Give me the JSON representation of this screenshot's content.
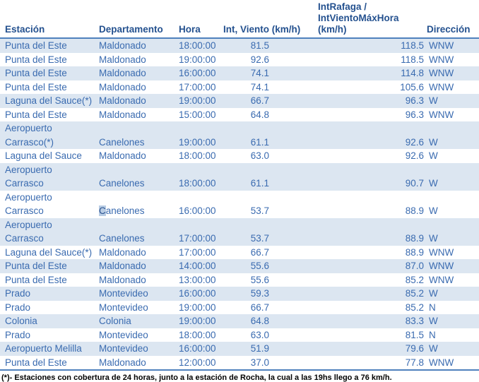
{
  "colors": {
    "header_text": "#24518f",
    "body_text": "#3a6bb0",
    "row_band": "#dce6f1",
    "table_border": "#4f81bd",
    "selection_bg": "#b8cce4",
    "footnote_text": "#000000"
  },
  "table": {
    "headers": {
      "estacion": "Estación",
      "departamento": "Departamento",
      "hora": "Hora",
      "int_viento": "Int, Viento (km/h)",
      "rafaga": "IntRafaga /\nIntVientoMáxHora\n(km/h)",
      "direccion": "Dirección"
    },
    "rows": [
      {
        "estacion": "Punta del Este",
        "departamento": "Maldonado",
        "hora": "18:00:00",
        "int_viento": "81.5",
        "rafaga": "118.5",
        "direccion": "WNW"
      },
      {
        "estacion": "Punta del Este",
        "departamento": "Maldonado",
        "hora": "19:00:00",
        "int_viento": "92.6",
        "rafaga": "118.5",
        "direccion": "WNW"
      },
      {
        "estacion": "Punta del Este",
        "departamento": "Maldonado",
        "hora": "16:00:00",
        "int_viento": "74.1",
        "rafaga": "114.8",
        "direccion": "WNW"
      },
      {
        "estacion": "Punta del Este",
        "departamento": "Maldonado",
        "hora": "17:00:00",
        "int_viento": "74.1",
        "rafaga": "105.6",
        "direccion": "WNW"
      },
      {
        "estacion": "Laguna del Sauce(*)",
        "departamento": "Maldonado",
        "hora": "19:00:00",
        "int_viento": "66.7",
        "rafaga": "96.3",
        "direccion": "W"
      },
      {
        "estacion": "Punta del Este",
        "departamento": "Maldonado",
        "hora": "15:00:00",
        "int_viento": "64.8",
        "rafaga": "96.3",
        "direccion": "WNW"
      },
      {
        "estacion": "Aeropuerto\nCarrasco(*)",
        "departamento": "Canelones",
        "hora": "19:00:00",
        "int_viento": "61.1",
        "rafaga": "92.6",
        "direccion": "W"
      },
      {
        "estacion": "Laguna del Sauce",
        "departamento": "Maldonado",
        "hora": "18:00:00",
        "int_viento": "63.0",
        "rafaga": "92.6",
        "direccion": "W"
      },
      {
        "estacion": "Aeropuerto\nCarrasco",
        "departamento": "Canelones",
        "hora": "18:00:00",
        "int_viento": "61.1",
        "rafaga": "90.7",
        "direccion": "W"
      },
      {
        "estacion": "Aeropuerto\nCarrasco",
        "departamento": "Canelones",
        "hora": "16:00:00",
        "int_viento": "53.7",
        "rafaga": "88.9",
        "direccion": "W"
      },
      {
        "estacion": "Aeropuerto\nCarrasco",
        "departamento": "Canelones",
        "hora": "17:00:00",
        "int_viento": "53.7",
        "rafaga": "88.9",
        "direccion": "W"
      },
      {
        "estacion": "Laguna del Sauce(*)",
        "departamento": "Maldonado",
        "hora": "17:00:00",
        "int_viento": "66.7",
        "rafaga": "88.9",
        "direccion": "WNW"
      },
      {
        "estacion": "Punta del Este",
        "departamento": "Maldonado",
        "hora": "14:00:00",
        "int_viento": "55.6",
        "rafaga": "87.0",
        "direccion": "WNW"
      },
      {
        "estacion": "Punta del Este",
        "departamento": "Maldonado",
        "hora": "13:00:00",
        "int_viento": "55.6",
        "rafaga": "85.2",
        "direccion": "WNW"
      },
      {
        "estacion": "Prado",
        "departamento": "Montevideo",
        "hora": "16:00:00",
        "int_viento": "59.3",
        "rafaga": "85.2",
        "direccion": "W"
      },
      {
        "estacion": "Prado",
        "departamento": "Montevideo",
        "hora": "19:00:00",
        "int_viento": "66.7",
        "rafaga": "85.2",
        "direccion": "N"
      },
      {
        "estacion": "Colonia",
        "departamento": "Colonia",
        "hora": "19:00:00",
        "int_viento": "64.8",
        "rafaga": "83.3",
        "direccion": "W"
      },
      {
        "estacion": "Prado",
        "departamento": "Montevideo",
        "hora": "18:00:00",
        "int_viento": "63.0",
        "rafaga": "81.5",
        "direccion": "N"
      },
      {
        "estacion": "Aeropuerto Melilla",
        "departamento": "Montevideo",
        "hora": "16:00:00",
        "int_viento": "51.9",
        "rafaga": "79.6",
        "direccion": "W"
      },
      {
        "estacion": "Punta del Este",
        "departamento": "Maldonado",
        "hora": "12:00:00",
        "int_viento": "37.0",
        "rafaga": "77.8",
        "direccion": "WNW"
      }
    ]
  },
  "selection": {
    "row_index": 9,
    "column": "departamento",
    "char_index": 0
  },
  "footnote": "(*)- Estaciones con cobertura de 24 horas, junto a la estación de Rocha, la cual a las 19hs llego a 76 km/h."
}
